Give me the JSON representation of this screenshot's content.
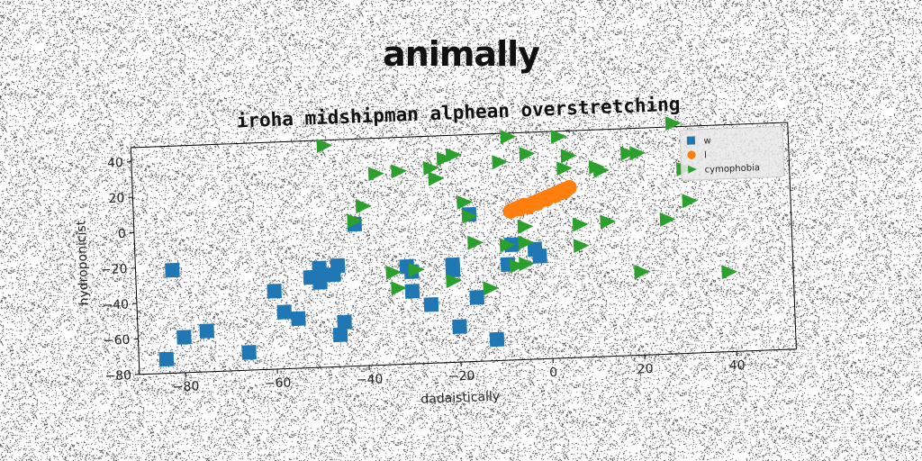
{
  "suptitle": "animally",
  "chart_data": {
    "type": "scatter",
    "title": "iroha midshipman alphean overstretching",
    "xlabel": "dadaistically",
    "ylabel": "hydroponicist",
    "xlim": [
      -90,
      53
    ],
    "ylim": [
      -80,
      48
    ],
    "xticks": [
      -80,
      -60,
      -40,
      -20,
      0,
      20,
      40
    ],
    "yticks": [
      -80,
      -60,
      -40,
      -20,
      0,
      20,
      40
    ],
    "grid": false,
    "legend_position": "top-right",
    "series": [
      {
        "name": "w",
        "marker": "square",
        "color": "#1f77b4",
        "points": [
          [
            -82,
            -22
          ],
          [
            -84,
            -72
          ],
          [
            -80,
            -60
          ],
          [
            -75,
            -57
          ],
          [
            -66,
            -70
          ],
          [
            -60,
            -36
          ],
          [
            -58,
            -48
          ],
          [
            -55,
            -52
          ],
          [
            -52,
            -29
          ],
          [
            -50,
            -24
          ],
          [
            -50,
            -32
          ],
          [
            -47,
            -28
          ],
          [
            -46,
            -23
          ],
          [
            -45,
            -55
          ],
          [
            -46,
            -62
          ],
          [
            -42,
            0
          ],
          [
            -31,
            -25
          ],
          [
            -30,
            -28
          ],
          [
            -30,
            -39
          ],
          [
            -26,
            -47
          ],
          [
            -21,
            -25
          ],
          [
            -21,
            -28
          ],
          [
            -20,
            -60
          ],
          [
            -16,
            -44
          ],
          [
            -17,
            3
          ],
          [
            -12,
            -68
          ],
          [
            -9,
            -26
          ],
          [
            -8,
            -15
          ],
          [
            -3,
            -18
          ],
          [
            -2,
            -22
          ]
        ]
      },
      {
        "name": "l",
        "marker": "circle",
        "color": "#ff7f0e",
        "points": [
          [
            -8,
            4
          ],
          [
            -7,
            5
          ],
          [
            -6,
            6
          ],
          [
            -5,
            7
          ],
          [
            -4,
            7
          ],
          [
            -3,
            8
          ],
          [
            -2,
            9
          ],
          [
            -1,
            10
          ],
          [
            0,
            11
          ],
          [
            1,
            12
          ],
          [
            2,
            13
          ],
          [
            3,
            14
          ],
          [
            4,
            15
          ],
          [
            5,
            16
          ],
          [
            4,
            14
          ],
          [
            2,
            12
          ],
          [
            0,
            10
          ],
          [
            -2,
            8
          ],
          [
            -4,
            6
          ],
          [
            -6,
            5
          ]
        ]
      },
      {
        "name": "cymophobia",
        "marker": "triangle-right",
        "color": "#2ca02c",
        "points": [
          [
            -48,
            45
          ],
          [
            -42,
            2
          ],
          [
            -40,
            10
          ],
          [
            -37,
            28
          ],
          [
            -34,
            -28
          ],
          [
            -32,
            29
          ],
          [
            -33,
            -37
          ],
          [
            -29,
            -27
          ],
          [
            -25,
            30
          ],
          [
            -24,
            24
          ],
          [
            -22,
            35
          ],
          [
            -21,
            -34
          ],
          [
            -20,
            37
          ],
          [
            -18,
            10
          ],
          [
            -17,
            2
          ],
          [
            -16,
            -13
          ],
          [
            -13,
            -39
          ],
          [
            -10,
            32
          ],
          [
            -8,
            46
          ],
          [
            -9,
            -15
          ],
          [
            -7,
            -27
          ],
          [
            -5,
            -26
          ],
          [
            -5,
            -5
          ],
          [
            -5,
            -14
          ],
          [
            -4,
            36
          ],
          [
            3,
            45
          ],
          [
            4,
            27
          ],
          [
            5,
            34
          ],
          [
            7,
            -5
          ],
          [
            7,
            -17
          ],
          [
            11,
            27
          ],
          [
            12,
            25
          ],
          [
            13,
            -4
          ],
          [
            18,
            34
          ],
          [
            20,
            34
          ],
          [
            20,
            -33
          ],
          [
            26,
            -4
          ],
          [
            28,
            50
          ],
          [
            30,
            24
          ],
          [
            31,
            6
          ],
          [
            39,
            -35
          ]
        ]
      }
    ]
  }
}
